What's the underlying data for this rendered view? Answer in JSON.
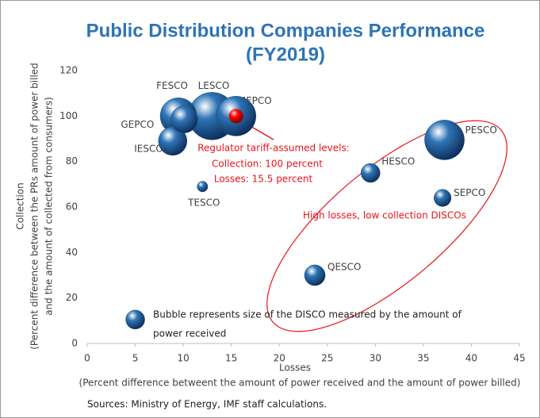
{
  "chart_data": {
    "type": "bubble",
    "title": [
      "Public Distribution Companies Performance",
      "(FY2019)"
    ],
    "x_label": "Losses",
    "x_sublabel": "(Percent difference betweent the amount of power received and the amount of power billed)",
    "y_label": [
      "Collection",
      "(Percent difference between the PRs amount of power billed",
      "and the amount of collected  from consumers)"
    ],
    "xlim": [
      0,
      45
    ],
    "xticks": [
      0,
      5,
      10,
      15,
      20,
      25,
      30,
      35,
      40,
      45
    ],
    "ylim": [
      0,
      120
    ],
    "yticks": [
      0,
      20,
      40,
      60,
      80,
      100,
      120
    ],
    "grid": false,
    "color": "#2e75b6",
    "points": [
      {
        "name": "LESCO",
        "x": 13,
        "y": 100,
        "size": 100
      },
      {
        "name": "FESCO",
        "x": 9.5,
        "y": 100,
        "size": 59
      },
      {
        "name": "GEPCO",
        "x": 10.1,
        "y": 98.5,
        "size": 32
      },
      {
        "name": "IESCO",
        "x": 8.9,
        "y": 89,
        "size": 36
      },
      {
        "name": "MEPCO",
        "x": 15.5,
        "y": 100,
        "size": 70
      },
      {
        "name": "TESCO",
        "x": 12,
        "y": 69,
        "size": 5
      },
      {
        "name": "HESCO",
        "x": 29.5,
        "y": 75,
        "size": 16
      },
      {
        "name": "PESCO",
        "x": 37.2,
        "y": 89.5,
        "size": 70
      },
      {
        "name": "SEPCO",
        "x": 37,
        "y": 64,
        "size": 13
      },
      {
        "name": "QESCO",
        "x": 23.7,
        "y": 30,
        "size": 19
      }
    ],
    "regulator": {
      "x": 15.5,
      "y": 100,
      "size": 9,
      "color": "#ff0000",
      "text": [
        "Regulator tariff-assumed levels:",
        "Collection: 100 percent",
        "Losses: 15.5 percent"
      ]
    },
    "group_note": "High losses, low collection DISCOs",
    "size_note": {
      "x": 5,
      "y": 10.5,
      "size": 16,
      "text": [
        "Bubble represents size of the DISCO measured by the amount of",
        "power received"
      ]
    },
    "source": "Sources: Ministry of Energy, IMF staff calculations."
  }
}
